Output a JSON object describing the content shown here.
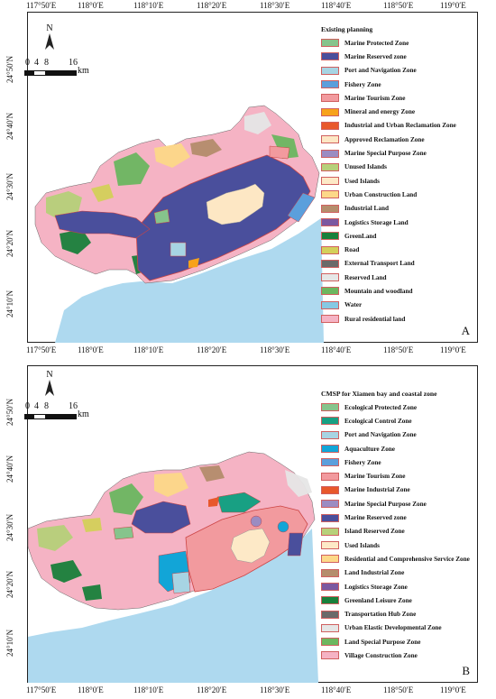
{
  "panel_a": {
    "letter": "A",
    "legend_title": "Existing planning",
    "legend": [
      {
        "label": "Marine Protected Zone",
        "color": "#86c48c"
      },
      {
        "label": "Marine Reserved zone",
        "color": "#4a4f9c"
      },
      {
        "label": "Port and Navigation Zone",
        "color": "#a7d4e3"
      },
      {
        "label": "Fishery Zone",
        "color": "#5b9fdc"
      },
      {
        "label": "Marine Tourism Zone",
        "color": "#f29a9e"
      },
      {
        "label": "Mineral and energy Zone",
        "color": "#f7a21b"
      },
      {
        "label": "Industrial and Urban Reclamation Zone",
        "color": "#e8582b"
      },
      {
        "label": "Approved Reclamation Zone",
        "color": "#fde7c4"
      },
      {
        "label": "Marine Special Purpose Zone",
        "color": "#9b8cc2"
      },
      {
        "label": "Unused Islands",
        "color": "#b6d07a"
      },
      {
        "label": "Used Islands",
        "color": "#fde9c7"
      },
      {
        "label": "Urban Construction Land",
        "color": "#fdd888"
      },
      {
        "label": "Industrial Land",
        "color": "#b48d6c"
      },
      {
        "label": "Logistics Storage Land",
        "color": "#7b58a0"
      },
      {
        "label": "GreenLand",
        "color": "#19803b"
      },
      {
        "label": "Road",
        "color": "#d4d05a"
      },
      {
        "label": "External Transport Land",
        "color": "#6a6a6a"
      },
      {
        "label": "Reserved Land",
        "color": "#e6e6e6"
      },
      {
        "label": "Mountain and woodland",
        "color": "#6cb760"
      },
      {
        "label": "Water",
        "color": "#86c9e3"
      },
      {
        "label": "Rural residential land",
        "color": "#f5b3c4"
      }
    ]
  },
  "panel_b": {
    "letter": "B",
    "legend_title": "CMSP for Xiamen bay and coastal zone",
    "legend": [
      {
        "label": "Ecological Protected Zone",
        "color": "#86c48c"
      },
      {
        "label": "Ecological Control Zone",
        "color": "#18a083"
      },
      {
        "label": "Port and Navigation Zone",
        "color": "#a7d4e3"
      },
      {
        "label": "Aquaculture Zone",
        "color": "#12a5d7"
      },
      {
        "label": "Fishery Zone",
        "color": "#5b9fdc"
      },
      {
        "label": "Marine Tourism Zone",
        "color": "#f29a9e"
      },
      {
        "label": "Marine Industrial Zone",
        "color": "#e8582b"
      },
      {
        "label": "Marine Special Purpose Zone",
        "color": "#9b8cc2"
      },
      {
        "label": "Marine Reserved zone",
        "color": "#4a4f9c"
      },
      {
        "label": "Island Reserved Zone",
        "color": "#b6d07a"
      },
      {
        "label": "Used Islands",
        "color": "#fde9c7"
      },
      {
        "label": "Residential and Comprehensive Service Zone",
        "color": "#fdd888"
      },
      {
        "label": "Land Industrial Zone",
        "color": "#b48d6c"
      },
      {
        "label": "Logistics Storage Zone",
        "color": "#7b58a0"
      },
      {
        "label": "Greenland Leisure Zone",
        "color": "#19803b"
      },
      {
        "label": "Transportation Hub Zone",
        "color": "#6a6a6a"
      },
      {
        "label": "Urban Elastic Developmental Zone",
        "color": "#e6e6e6"
      },
      {
        "label": "Land Special Purpose Zone",
        "color": "#6cb760"
      },
      {
        "label": "Village Construction Zone",
        "color": "#f5b3c4"
      }
    ]
  },
  "axes": {
    "lon_ticks": [
      "117°50′E",
      "118°0′E",
      "118°10′E",
      "118°20′E",
      "118°30′E",
      "118°40′E",
      "118°50′E",
      "119°0′E"
    ],
    "lat_ticks": [
      "24°50′N",
      "24°40′N",
      "24°30′N",
      "24°20′N",
      "24°10′N"
    ]
  },
  "north_label": "N",
  "scale": {
    "ticks": [
      "0",
      "4",
      "8",
      "16"
    ],
    "unit": "km"
  },
  "colors": {
    "sea": "#aed9ef",
    "land_mix": [
      "#f5b3c4",
      "#e6e6e6",
      "#b6d07a",
      "#6cb760",
      "#fdd888",
      "#19803b",
      "#b48d6c",
      "#d4d05a"
    ]
  }
}
